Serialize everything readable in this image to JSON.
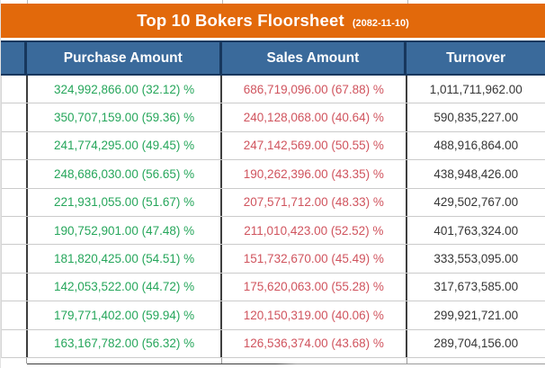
{
  "title": {
    "text": "Top 10 Bokers Floorsheet",
    "date": "(2082-11-10)"
  },
  "columns": {
    "index": "",
    "purchase": "Purchase Amount",
    "sales": "Sales Amount",
    "turnover": "Turnover"
  },
  "colors": {
    "title-bar": "#E2690B",
    "header-bg": "#3A6A9B",
    "header-border": "#17375D",
    "positive": "#26A65B",
    "negative": "#D0545E",
    "turnover-text": "#363636",
    "row-border": "#CBCBCB",
    "column-border": "#3F3F3F"
  },
  "rows": [
    {
      "purchase": "324,992,866.00 (32.12) %",
      "sales": "686,719,096.00 (67.88) %",
      "turnover": "1,011,711,962.00"
    },
    {
      "purchase": "350,707,159.00 (59.36) %",
      "sales": "240,128,068.00 (40.64) %",
      "turnover": "590,835,227.00"
    },
    {
      "purchase": "241,774,295.00 (49.45) %",
      "sales": "247,142,569.00 (50.55) %",
      "turnover": "488,916,864.00"
    },
    {
      "purchase": "248,686,030.00 (56.65) %",
      "sales": "190,262,396.00 (43.35) %",
      "turnover": "438,948,426.00"
    },
    {
      "purchase": "221,931,055.00 (51.67) %",
      "sales": "207,571,712.00 (48.33) %",
      "turnover": "429,502,767.00"
    },
    {
      "purchase": "190,752,901.00 (47.48) %",
      "sales": "211,010,423.00 (52.52) %",
      "turnover": "401,763,324.00"
    },
    {
      "purchase": "181,820,425.00 (54.51) %",
      "sales": "151,732,670.00 (45.49) %",
      "turnover": "333,553,095.00"
    },
    {
      "purchase": "142,053,522.00 (44.72) %",
      "sales": "175,620,063.00 (55.28) %",
      "turnover": "317,673,585.00"
    },
    {
      "purchase": "179,771,402.00 (59.94) %",
      "sales": "120,150,319.00 (40.06) %",
      "turnover": "299,921,721.00"
    },
    {
      "purchase": "163,167,782.00 (56.32) %",
      "sales": "126,536,374.00 (43.68) %",
      "turnover": "289,704,156.00"
    }
  ]
}
